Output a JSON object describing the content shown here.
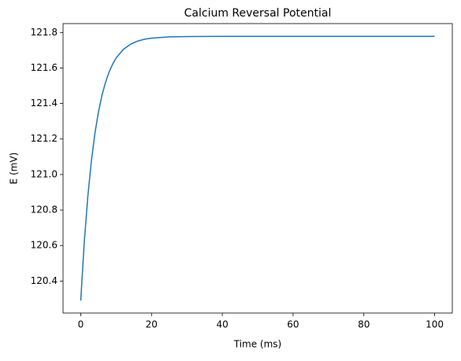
{
  "chart_data": {
    "type": "line",
    "title": "Calcium Reversal Potential",
    "x_label": "Time (ms)",
    "y_label": "E (mV)",
    "x": [
      0,
      1,
      2,
      3,
      4,
      5,
      6,
      7,
      8,
      9,
      10,
      12,
      14,
      16,
      18,
      20,
      25,
      30,
      40,
      60,
      80,
      100
    ],
    "series": [
      {
        "color": "#1f77b4",
        "values": [
          120.29,
          120.619,
          120.876,
          121.075,
          121.231,
          121.352,
          121.446,
          121.519,
          121.577,
          121.621,
          121.656,
          121.704,
          121.733,
          121.751,
          121.762,
          121.768,
          121.775,
          121.777,
          121.778,
          121.778,
          121.778,
          121.778
        ]
      }
    ],
    "xlim": [
      -5,
      105
    ],
    "xticks": [
      0,
      20,
      40,
      60,
      80,
      100
    ],
    "ylim": [
      120.22,
      121.85
    ],
    "yticks": [
      120.4,
      120.6,
      120.8,
      {
        "value": 121,
        "label": "121.0"
      },
      121.2,
      121.4,
      121.6,
      121.8
    ]
  }
}
